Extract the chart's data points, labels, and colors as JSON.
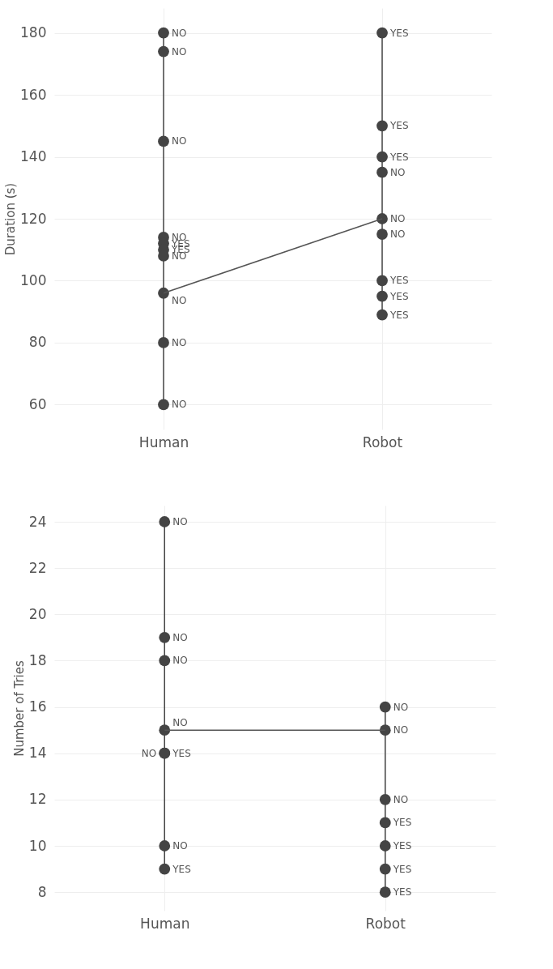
{
  "chart_data": [
    {
      "type": "line",
      "ylabel": "Duration (s)",
      "categories": [
        "Human",
        "Robot"
      ],
      "ylim": [
        52,
        188
      ],
      "yticks": [
        60,
        80,
        100,
        120,
        140,
        160,
        180
      ],
      "grid": true,
      "legend": false,
      "marker": "circle",
      "line_style": "solid",
      "series": [
        {
          "color": "#444444",
          "x": [
            "Human",
            "Human",
            "Human",
            "Human",
            "Human",
            "Human",
            "Human",
            "Human",
            "Human",
            "Human"
          ],
          "values": [
            180,
            174,
            145,
            114,
            112,
            110,
            108,
            96,
            80,
            60
          ],
          "value_labels": [
            "NO",
            "NO",
            "NO",
            "NO",
            "YES",
            "YES",
            "NO",
            "NO",
            "NO",
            "NO"
          ]
        },
        {
          "color": "#444444",
          "x": [
            "Robot",
            "Robot",
            "Robot",
            "Robot",
            "Robot",
            "Robot",
            "Robot",
            "Robot",
            "Robot"
          ],
          "values": [
            180,
            150,
            140,
            135,
            120,
            115,
            100,
            95,
            89
          ],
          "value_labels": [
            "YES",
            "YES",
            "YES",
            "NO",
            "NO",
            "NO",
            "YES",
            "YES",
            "YES"
          ]
        },
        {
          "color": "#555555",
          "marker": "none",
          "x": [
            "Human",
            "Robot"
          ],
          "values": [
            96,
            120
          ]
        }
      ]
    },
    {
      "type": "line",
      "ylabel": "Number of Tries",
      "categories": [
        "Human",
        "Robot"
      ],
      "ylim": [
        7.2,
        24.7
      ],
      "yticks": [
        8,
        10,
        12,
        14,
        16,
        18,
        20,
        22,
        24
      ],
      "grid": true,
      "legend": false,
      "marker": "circle",
      "line_style": "solid",
      "series": [
        {
          "color": "#444444",
          "x": [
            "Human",
            "Human",
            "Human",
            "Human",
            "Human",
            "Human",
            "Human",
            "Human"
          ],
          "values": [
            24,
            19,
            18,
            15,
            14,
            14,
            10,
            9
          ],
          "value_labels": [
            "NO",
            "NO",
            "NO",
            "NO",
            "YES",
            "NO",
            "NO",
            "YES"
          ]
        },
        {
          "color": "#444444",
          "x": [
            "Robot",
            "Robot",
            "Robot",
            "Robot",
            "Robot",
            "Robot",
            "Robot"
          ],
          "values": [
            16,
            15,
            12,
            11,
            10,
            9,
            8
          ],
          "value_labels": [
            "NO",
            "NO",
            "NO",
            "YES",
            "YES",
            "YES",
            "YES"
          ]
        },
        {
          "color": "#555555",
          "marker": "none",
          "x": [
            "Human",
            "Robot"
          ],
          "values": [
            15,
            15
          ]
        }
      ]
    }
  ]
}
